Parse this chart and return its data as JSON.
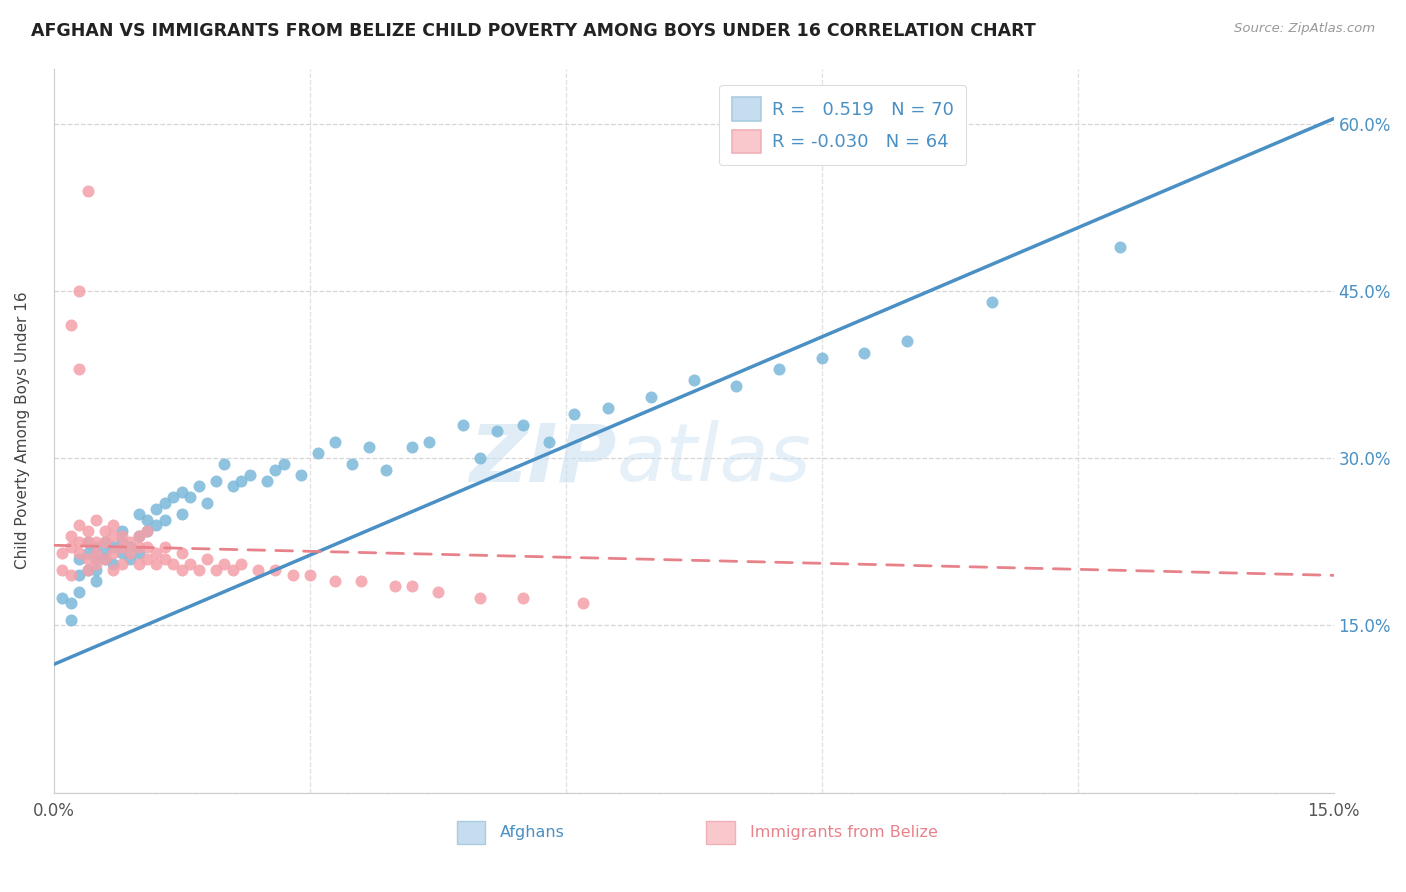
{
  "title": "AFGHAN VS IMMIGRANTS FROM BELIZE CHILD POVERTY AMONG BOYS UNDER 16 CORRELATION CHART",
  "source": "Source: ZipAtlas.com",
  "ylabel": "Child Poverty Among Boys Under 16",
  "x_min": 0.0,
  "x_max": 0.15,
  "y_min": 0.0,
  "y_max": 0.65,
  "afghans_color": "#7ab8d9",
  "afghans_color_light": "#c6dcef",
  "belize_color": "#f4a0a8",
  "belize_color_light": "#f9c8cc",
  "line_afghan_color": "#4a90c4",
  "line_belize_color": "#e8828a",
  "line_afghan_x0": 0.0,
  "line_afghan_y0": 0.115,
  "line_afghan_x1": 0.15,
  "line_afghan_y1": 0.605,
  "line_belize_x0": 0.0,
  "line_belize_y0": 0.222,
  "line_belize_x1": 0.15,
  "line_belize_y1": 0.195,
  "afghans_x": [
    0.001,
    0.002,
    0.002,
    0.003,
    0.003,
    0.003,
    0.004,
    0.004,
    0.004,
    0.005,
    0.005,
    0.005,
    0.005,
    0.006,
    0.006,
    0.006,
    0.007,
    0.007,
    0.008,
    0.008,
    0.008,
    0.009,
    0.009,
    0.01,
    0.01,
    0.01,
    0.011,
    0.011,
    0.012,
    0.012,
    0.013,
    0.013,
    0.014,
    0.015,
    0.015,
    0.016,
    0.017,
    0.018,
    0.019,
    0.02,
    0.021,
    0.022,
    0.023,
    0.025,
    0.026,
    0.027,
    0.029,
    0.031,
    0.033,
    0.035,
    0.037,
    0.039,
    0.042,
    0.044,
    0.048,
    0.05,
    0.052,
    0.055,
    0.058,
    0.061,
    0.065,
    0.07,
    0.075,
    0.08,
    0.085,
    0.09,
    0.095,
    0.1,
    0.11,
    0.125
  ],
  "afghans_y": [
    0.175,
    0.155,
    0.17,
    0.195,
    0.21,
    0.18,
    0.2,
    0.215,
    0.225,
    0.19,
    0.21,
    0.22,
    0.2,
    0.215,
    0.225,
    0.21,
    0.22,
    0.205,
    0.215,
    0.225,
    0.235,
    0.21,
    0.22,
    0.23,
    0.215,
    0.25,
    0.235,
    0.245,
    0.24,
    0.255,
    0.26,
    0.245,
    0.265,
    0.25,
    0.27,
    0.265,
    0.275,
    0.26,
    0.28,
    0.295,
    0.275,
    0.28,
    0.285,
    0.28,
    0.29,
    0.295,
    0.285,
    0.305,
    0.315,
    0.295,
    0.31,
    0.29,
    0.31,
    0.315,
    0.33,
    0.3,
    0.325,
    0.33,
    0.315,
    0.34,
    0.345,
    0.355,
    0.37,
    0.365,
    0.38,
    0.39,
    0.395,
    0.405,
    0.44,
    0.49
  ],
  "belize_x": [
    0.001,
    0.001,
    0.002,
    0.002,
    0.002,
    0.003,
    0.003,
    0.003,
    0.004,
    0.004,
    0.004,
    0.004,
    0.005,
    0.005,
    0.005,
    0.005,
    0.006,
    0.006,
    0.006,
    0.007,
    0.007,
    0.007,
    0.007,
    0.008,
    0.008,
    0.008,
    0.009,
    0.009,
    0.01,
    0.01,
    0.01,
    0.011,
    0.011,
    0.011,
    0.012,
    0.012,
    0.013,
    0.013,
    0.014,
    0.015,
    0.015,
    0.016,
    0.017,
    0.018,
    0.019,
    0.02,
    0.021,
    0.022,
    0.024,
    0.026,
    0.028,
    0.03,
    0.033,
    0.036,
    0.04,
    0.042,
    0.045,
    0.05,
    0.055,
    0.062,
    0.003,
    0.004,
    0.003,
    0.002
  ],
  "belize_y": [
    0.2,
    0.215,
    0.195,
    0.22,
    0.23,
    0.215,
    0.225,
    0.24,
    0.2,
    0.21,
    0.225,
    0.235,
    0.205,
    0.215,
    0.225,
    0.245,
    0.21,
    0.225,
    0.235,
    0.2,
    0.215,
    0.23,
    0.24,
    0.205,
    0.22,
    0.23,
    0.215,
    0.225,
    0.205,
    0.22,
    0.23,
    0.21,
    0.22,
    0.235,
    0.205,
    0.215,
    0.21,
    0.22,
    0.205,
    0.2,
    0.215,
    0.205,
    0.2,
    0.21,
    0.2,
    0.205,
    0.2,
    0.205,
    0.2,
    0.2,
    0.195,
    0.195,
    0.19,
    0.19,
    0.185,
    0.185,
    0.18,
    0.175,
    0.175,
    0.17,
    0.45,
    0.54,
    0.38,
    0.42
  ]
}
